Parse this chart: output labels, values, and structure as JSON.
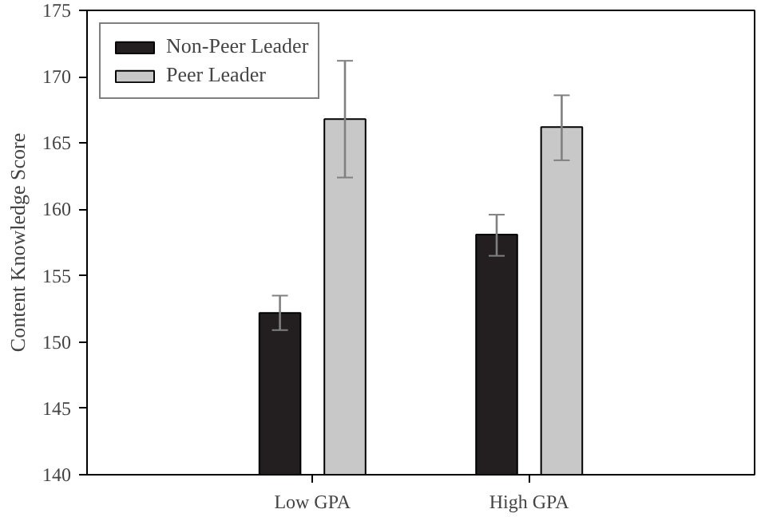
{
  "chart_data": {
    "type": "bar",
    "ylabel": "Content Knowledge Score",
    "categories": [
      "Low GPA",
      "High GPA"
    ],
    "series": [
      {
        "name": "Non-Peer Leader",
        "color": "#231f20",
        "values": [
          152.2,
          158.1
        ],
        "errors": [
          [
            150.9,
            153.5
          ],
          [
            156.5,
            159.6
          ]
        ]
      },
      {
        "name": "Peer Leader",
        "color": "#c8c8c8",
        "values": [
          166.8,
          166.2
        ],
        "errors": [
          [
            162.4,
            171.2
          ],
          [
            163.7,
            168.6
          ]
        ]
      }
    ],
    "ylim": [
      140,
      175
    ],
    "yticks": [
      140,
      145,
      150,
      155,
      160,
      165,
      170,
      175
    ],
    "grid": false,
    "legend": "top left"
  }
}
